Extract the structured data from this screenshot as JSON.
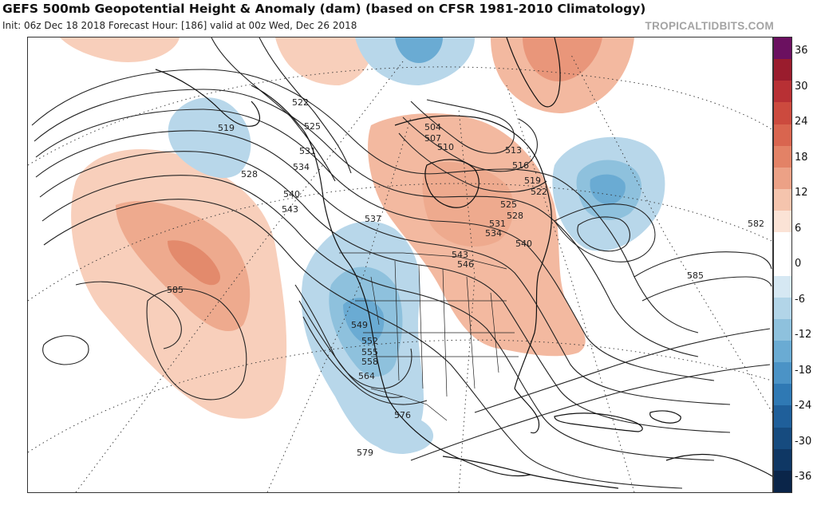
{
  "header": {
    "title": "GEFS 500mb Geopotential Height & Anomaly (dam) (based on CFSR 1981-2010 Climatology)",
    "subtitle": "Init: 06z Dec 18 2018   Forecast Hour: [186]   valid at 00z Wed, Dec 26 2018",
    "brand": "TROPICALTIDBITS.COM"
  },
  "colorbar": {
    "tick_labels": [
      "36",
      "30",
      "24",
      "18",
      "12",
      "6",
      "0",
      "-6",
      "-12",
      "-18",
      "-24",
      "-30",
      "-36"
    ],
    "colors": [
      "#6b1060",
      "#9a1c2d",
      "#b83034",
      "#cc4a3e",
      "#d9654f",
      "#e38266",
      "#eca186",
      "#f5c4ad",
      "#fbe3d6",
      "#ffffff",
      "#ffffff",
      "#d6e8f3",
      "#b2d5e8",
      "#8ec1dd",
      "#6aabd3",
      "#4b93c6",
      "#2f79b4",
      "#1f5f9a",
      "#164b7f",
      "#0f3764",
      "#0a2549"
    ]
  },
  "map": {
    "height_contour_labels": [
      "519",
      "522",
      "525",
      "528",
      "531",
      "534",
      "540",
      "543",
      "537",
      "504",
      "507",
      "510",
      "513",
      "516",
      "519",
      "522",
      "525",
      "528",
      "531",
      "534",
      "540",
      "543",
      "546",
      "549",
      "552",
      "555",
      "558",
      "564",
      "576",
      "579",
      "585",
      "582",
      "585"
    ]
  }
}
